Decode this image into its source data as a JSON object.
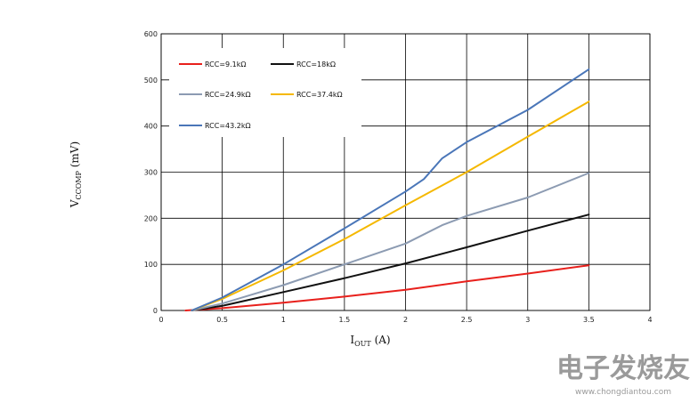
{
  "chart_data": {
    "type": "line",
    "xlabel": {
      "main": "I",
      "sub": "OUT",
      "unit": " (A)"
    },
    "ylabel": {
      "main": "V",
      "sub": "CCOMP",
      "unit": " (mV)"
    },
    "xlim": [
      0,
      4
    ],
    "ylim": [
      0,
      600
    ],
    "x_ticks": [
      "0",
      "0.5",
      "1",
      "1.5",
      "2",
      "2.5",
      "3",
      "3.5",
      "4"
    ],
    "y_ticks": [
      "0",
      "100",
      "200",
      "300",
      "400",
      "500",
      "600"
    ],
    "grid": true,
    "legend_position": "top-left",
    "series": [
      {
        "name": "RCC=9.1kΩ",
        "color": "#e8201c",
        "points": [
          [
            0.2,
            0
          ],
          [
            0.5,
            5
          ],
          [
            1,
            17
          ],
          [
            1.5,
            30
          ],
          [
            2,
            45
          ],
          [
            2.5,
            63
          ],
          [
            3,
            80
          ],
          [
            3.5,
            98
          ]
        ]
      },
      {
        "name": "RCC=18kΩ",
        "color": "#111111",
        "points": [
          [
            0.25,
            0
          ],
          [
            0.5,
            10
          ],
          [
            1,
            40
          ],
          [
            1.5,
            70
          ],
          [
            2,
            102
          ],
          [
            2.5,
            137
          ],
          [
            3,
            173
          ],
          [
            3.5,
            208
          ]
        ]
      },
      {
        "name": "RCC=24.9kΩ",
        "color": "#8c9bb2",
        "points": [
          [
            0.25,
            0
          ],
          [
            0.5,
            15
          ],
          [
            1,
            55
          ],
          [
            1.5,
            100
          ],
          [
            2,
            145
          ],
          [
            2.3,
            185
          ],
          [
            2.5,
            205
          ],
          [
            3,
            245
          ],
          [
            3.5,
            298
          ]
        ]
      },
      {
        "name": "RCC=37.4kΩ",
        "color": "#f5b800",
        "points": [
          [
            0.25,
            0
          ],
          [
            0.5,
            25
          ],
          [
            1,
            87
          ],
          [
            1.5,
            155
          ],
          [
            2,
            228
          ],
          [
            2.5,
            300
          ],
          [
            3,
            377
          ],
          [
            3.5,
            453
          ]
        ]
      },
      {
        "name": "RCC=43.2kΩ",
        "color": "#4a76b8",
        "points": [
          [
            0.25,
            0
          ],
          [
            0.5,
            28
          ],
          [
            1,
            100
          ],
          [
            1.5,
            178
          ],
          [
            2,
            258
          ],
          [
            2.15,
            285
          ],
          [
            2.3,
            330
          ],
          [
            2.5,
            365
          ],
          [
            3,
            435
          ],
          [
            3.5,
            523
          ]
        ]
      }
    ]
  },
  "watermark": {
    "logo_text": "电子发烧友",
    "url": "www.chongdiantou.com"
  }
}
